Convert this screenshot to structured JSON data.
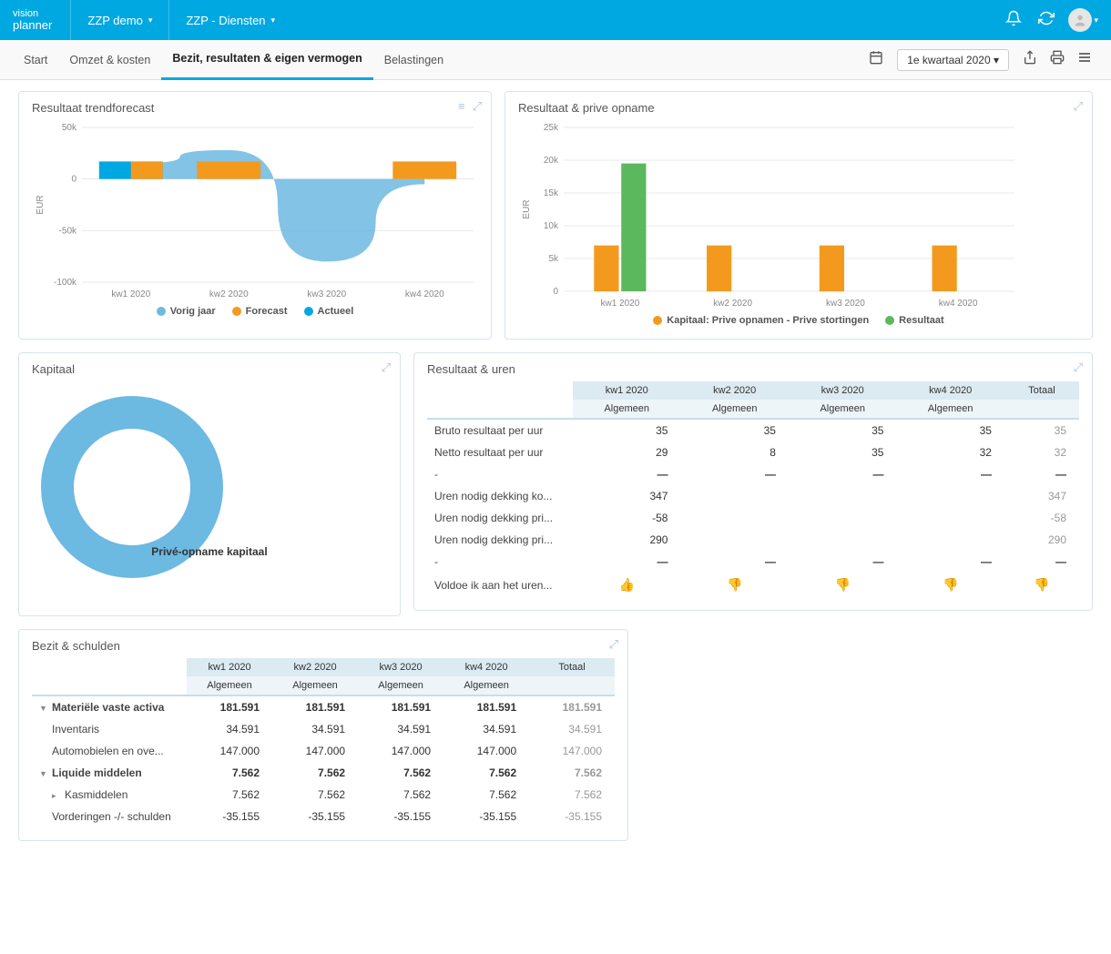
{
  "brand": {
    "line1": "vision",
    "line2": "planner"
  },
  "top_dropdowns": [
    {
      "label": "ZZP demo"
    },
    {
      "label": "ZZP - Diensten"
    }
  ],
  "tabs": [
    {
      "label": "Start",
      "active": false
    },
    {
      "label": "Omzet & kosten",
      "active": false
    },
    {
      "label": "Bezit, resultaten & eigen vermogen",
      "active": true
    },
    {
      "label": "Belastingen",
      "active": false
    }
  ],
  "period": "1e kwartaal 2020",
  "colors": {
    "brand": "#00a8e1",
    "orange": "#f39a1e",
    "green": "#5cb85c",
    "blue_light": "#6cb9e2",
    "panel_border": "#d5e4ee",
    "header_cell": "#dceaf2"
  },
  "chart_trend": {
    "title": "Resultaat trendforecast",
    "ylabel": "EUR",
    "categories": [
      "kw1 2020",
      "kw2 2020",
      "kw3 2020",
      "kw4 2020"
    ],
    "yticks": [
      -100,
      -50,
      0,
      50
    ],
    "ytick_labels": [
      "-100k",
      "-50k",
      "0",
      "50k"
    ],
    "area_vorig": [
      15,
      28,
      -80,
      -5
    ],
    "bars_forecast": [
      null,
      17,
      null,
      17
    ],
    "bars_actueel": [
      17,
      null,
      null,
      null
    ],
    "bar_half_forecast_kw1": 17,
    "legend": [
      {
        "label": "Vorig jaar",
        "color": "#6cb9e2"
      },
      {
        "label": "Forecast",
        "color": "#f39a1e"
      },
      {
        "label": "Actueel",
        "color": "#00a8e1"
      }
    ]
  },
  "chart_prive": {
    "title": "Resultaat & prive opname",
    "ylabel": "EUR",
    "categories": [
      "kw1 2020",
      "kw2 2020",
      "kw3 2020",
      "kw4 2020"
    ],
    "yticks": [
      0,
      5,
      10,
      15,
      20,
      25
    ],
    "ytick_labels": [
      "0",
      "5k",
      "10k",
      "15k",
      "20k",
      "25k"
    ],
    "series": [
      {
        "name": "Kapitaal: Prive opnamen - Prive stortingen",
        "color": "#f39a1e",
        "values": [
          7,
          7,
          7,
          7
        ]
      },
      {
        "name": "Resultaat",
        "color": "#5cb85c",
        "values": [
          19.5,
          0,
          0,
          0
        ]
      }
    ]
  },
  "donut": {
    "title": "Kapitaal",
    "label": "Privé-opname kapitaal",
    "color": "#6cb9e2",
    "thickness": 36
  },
  "table_uren": {
    "title": "Resultaat & uren",
    "cols": [
      "kw1 2020",
      "kw2 2020",
      "kw3 2020",
      "kw4 2020",
      "Totaal"
    ],
    "sub": "Algemeen",
    "rows": [
      {
        "label": "Bruto resultaat per uur",
        "v": [
          "35",
          "35",
          "35",
          "35",
          "35"
        ]
      },
      {
        "label": "Netto resultaat per uur",
        "v": [
          "29",
          "8",
          "35",
          "32",
          "32"
        ]
      },
      {
        "label": "-",
        "dash": true
      },
      {
        "label": "Uren nodig dekking ko...",
        "v": [
          "347",
          "",
          "",
          "",
          "347"
        ]
      },
      {
        "label": "Uren nodig dekking pri...",
        "v": [
          "-58",
          "",
          "",
          "",
          "-58"
        ]
      },
      {
        "label": "Uren nodig dekking pri...",
        "v": [
          "290",
          "",
          "",
          "",
          "290"
        ]
      },
      {
        "label": "-",
        "dash": true
      },
      {
        "label": "Voldoe ik aan het uren...",
        "thumbs": [
          "up",
          "down",
          "down",
          "down",
          "down"
        ]
      }
    ]
  },
  "table_bezit": {
    "title": "Bezit & schulden",
    "cols": [
      "kw1 2020",
      "kw2 2020",
      "kw3 2020",
      "kw4 2020",
      "Totaal"
    ],
    "sub": "Algemeen",
    "rows": [
      {
        "label": "Materiële vaste activa",
        "bold": true,
        "toggle": "▼",
        "v": [
          "181.591",
          "181.591",
          "181.591",
          "181.591",
          "181.591"
        ]
      },
      {
        "label": "Inventaris",
        "indent": 1,
        "v": [
          "34.591",
          "34.591",
          "34.591",
          "34.591",
          "34.591"
        ]
      },
      {
        "label": "Automobielen en ove...",
        "indent": 1,
        "v": [
          "147.000",
          "147.000",
          "147.000",
          "147.000",
          "147.000"
        ]
      },
      {
        "label": "Liquide middelen",
        "bold": true,
        "toggle": "▼",
        "v": [
          "7.562",
          "7.562",
          "7.562",
          "7.562",
          "7.562"
        ]
      },
      {
        "label": "Kasmiddelen",
        "indent": 1,
        "toggle": "▸",
        "v": [
          "7.562",
          "7.562",
          "7.562",
          "7.562",
          "7.562"
        ]
      },
      {
        "label": "Vorderingen -/- schulden",
        "indent": 1,
        "v": [
          "-35.155",
          "-35.155",
          "-35.155",
          "-35.155",
          "-35.155"
        ]
      }
    ]
  }
}
